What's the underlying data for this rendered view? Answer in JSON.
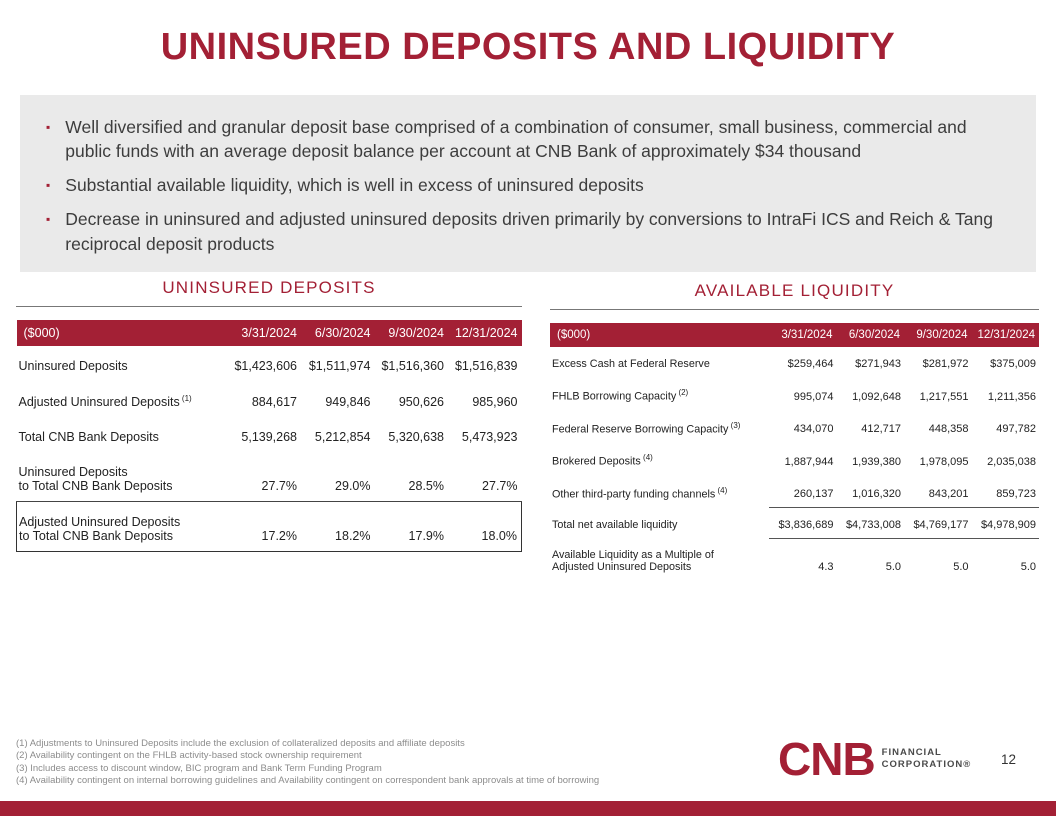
{
  "slide": {
    "title": "UNINSURED DEPOSITS AND LIQUIDITY",
    "page_number": "12"
  },
  "colors": {
    "accent": "#A32035",
    "highlight_box_bg": "#EAEAEA",
    "footnote_text": "#8C8C8C"
  },
  "highlights": {
    "bullets": [
      "Well diversified and granular deposit base comprised of a combination of consumer, small business, commercial and public funds with an average deposit balance per account at CNB Bank of approximately $34 thousand",
      "Substantial available liquidity, which is well in excess of uninsured deposits",
      "Decrease in uninsured and adjusted uninsured deposits driven primarily by conversions to IntraFi ICS and Reich & Tang reciprocal deposit products"
    ]
  },
  "uninsured_table": {
    "title": "UNINSURED DEPOSITS",
    "header": [
      "($000)",
      "3/31/2024",
      "6/30/2024",
      "9/30/2024",
      "12/31/2024"
    ],
    "rows": [
      {
        "label": "Uninsured Deposits",
        "sup": "",
        "style": "",
        "values": [
          "$1,423,606",
          "$1,511,974",
          "$1,516,360",
          "$1,516,839"
        ]
      },
      {
        "label": "Adjusted Uninsured Deposits",
        "sup": "(1)",
        "style": "",
        "values": [
          "884,617",
          "949,846",
          "950,626",
          "985,960"
        ]
      },
      {
        "label": "Total CNB Bank Deposits",
        "sup": "",
        "style": "",
        "values": [
          "5,139,268",
          "5,212,854",
          "5,320,638",
          "5,473,923"
        ]
      },
      {
        "label": "Uninsured Deposits\nto Total CNB Bank Deposits",
        "sup": "",
        "style": "rule-below",
        "values": [
          "27.7%",
          "29.0%",
          "28.5%",
          "27.7%"
        ]
      },
      {
        "label": "Adjusted Uninsured Deposits\nto Total CNB Bank Deposits",
        "sup": "",
        "style": "boxed",
        "values": [
          "17.2%",
          "18.2%",
          "17.9%",
          "18.0%"
        ]
      }
    ]
  },
  "liquidity_table": {
    "title": "AVAILABLE LIQUIDITY",
    "header": [
      "($000)",
      "3/31/2024",
      "6/30/2024",
      "9/30/2024",
      "12/31/2024"
    ],
    "rows": [
      {
        "label": "Excess Cash at Federal Reserve",
        "sup": "",
        "style": "",
        "values": [
          "$259,464",
          "$271,943",
          "$281,972",
          "$375,009"
        ]
      },
      {
        "label": "FHLB Borrowing Capacity",
        "sup": "(2)",
        "style": "",
        "values": [
          "995,074",
          "1,092,648",
          "1,217,551",
          "1,211,356"
        ]
      },
      {
        "label": "Federal Reserve Borrowing Capacity",
        "sup": "(3)",
        "style": "",
        "values": [
          "434,070",
          "412,717",
          "448,358",
          "497,782"
        ]
      },
      {
        "label": "Brokered Deposits",
        "sup": "(4)",
        "style": "",
        "values": [
          "1,887,944",
          "1,939,380",
          "1,978,095",
          "2,035,038"
        ]
      },
      {
        "label": "Other third-party funding channels",
        "sup": "(4)",
        "style": "values-underline",
        "values": [
          "260,137",
          "1,016,320",
          "843,201",
          "859,723"
        ]
      },
      {
        "label": "Total net available liquidity",
        "sup": "",
        "style": "totals",
        "values": [
          "$3,836,689",
          "$4,733,008",
          "$4,769,177",
          "$4,978,909"
        ]
      },
      {
        "label": "Available Liquidity as a Multiple of\nAdjusted Uninsured Deposits",
        "sup": "",
        "style": "",
        "values": [
          "4.3",
          "5.0",
          "5.0",
          "5.0"
        ]
      }
    ]
  },
  "footnotes": [
    "(1) Adjustments to Uninsured Deposits include the exclusion of collateralized deposits and affiliate deposits",
    "(2) Availability contingent on the FHLB activity-based stock ownership requirement",
    "(3) Includes access to discount window, BIC program and Bank Term Funding Program",
    "(4) Availability contingent on internal borrowing guidelines and Availability contingent on correspondent bank approvals at time of borrowing"
  ],
  "logo": {
    "text": "CNB",
    "line1": "FINANCIAL",
    "line2": "CORPORATION®"
  }
}
